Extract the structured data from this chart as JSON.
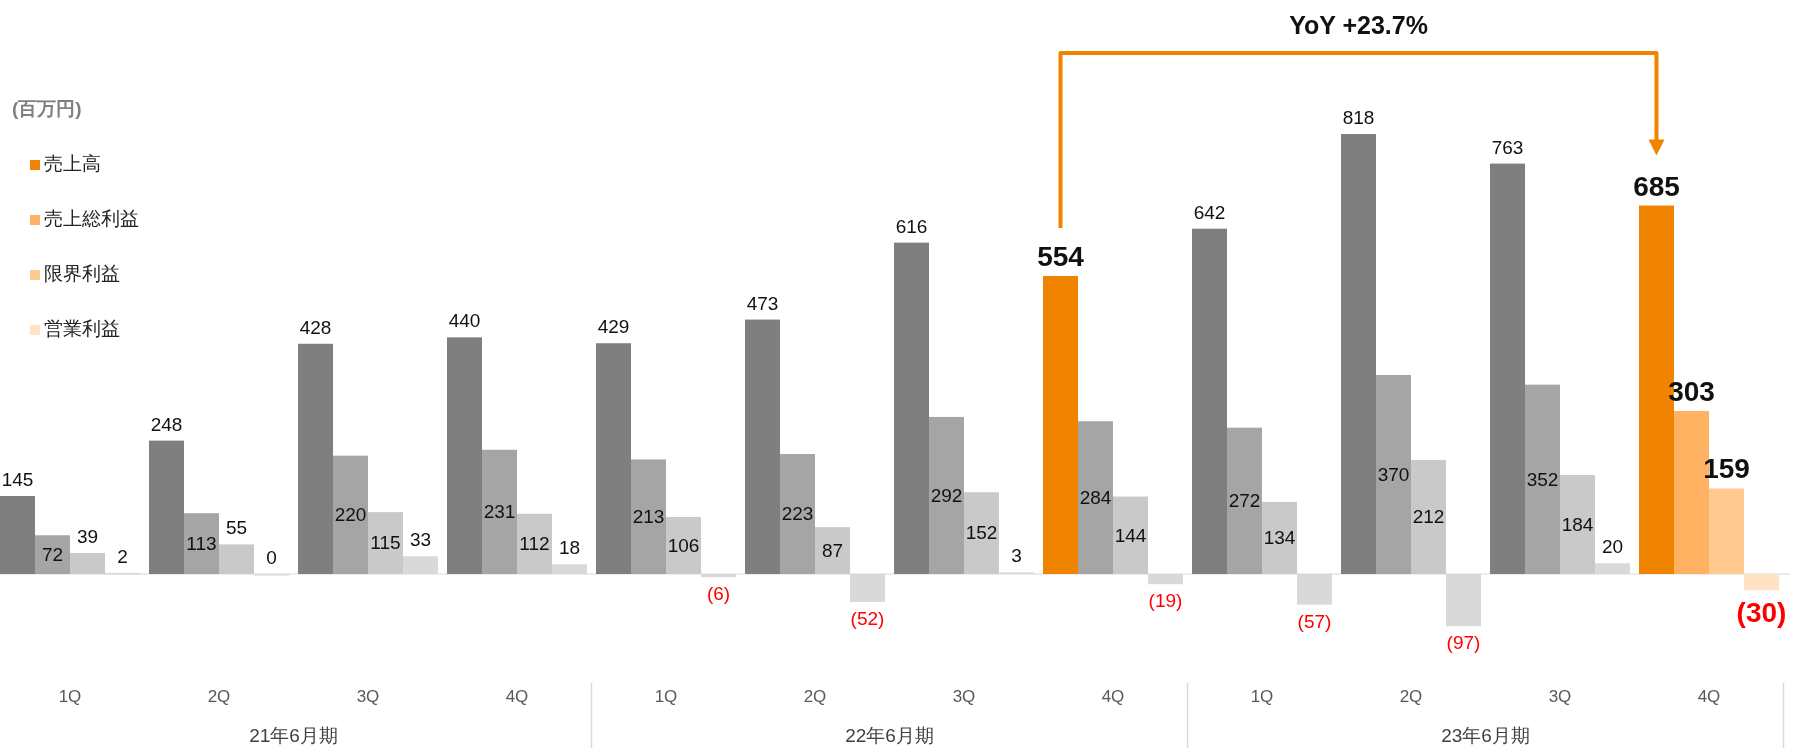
{
  "chart_data": {
    "type": "bar",
    "ylabel": "(百万円)",
    "legend": "top left",
    "tick_labels": "x",
    "categories": [
      "1Q",
      "2Q",
      "3Q",
      "4Q",
      "1Q",
      "2Q",
      "3Q",
      "4Q",
      "1Q",
      "2Q",
      "3Q",
      "4Q"
    ],
    "series": [
      {
        "name": "売上高",
        "color": "#f08300",
        "colors": [
          "#7f7f7f",
          "#7f7f7f",
          "#7f7f7f",
          "#7f7f7f",
          "#7f7f7f",
          "#7f7f7f",
          "#7f7f7f",
          "#f08300",
          "#7f7f7f",
          "#7f7f7f",
          "#7f7f7f",
          "#f08300"
        ],
        "values": [
          145,
          248,
          428,
          440,
          429,
          473,
          616,
          554,
          642,
          818,
          763,
          685
        ],
        "value_labels": [
          "145",
          "248",
          "428",
          "440",
          "429",
          "473",
          "616",
          "554",
          "642",
          "818",
          "763",
          "685"
        ]
      },
      {
        "name": "売上総利益",
        "color": "#ffb362",
        "colors": [
          "#a5a5a5",
          "#a5a5a5",
          "#a5a5a5",
          "#a5a5a5",
          "#a5a5a5",
          "#a5a5a5",
          "#a5a5a5",
          "#a5a5a5",
          "#a5a5a5",
          "#a5a5a5",
          "#a5a5a5",
          "#ffb362"
        ],
        "values": [
          72,
          113,
          220,
          231,
          213,
          223,
          292,
          284,
          272,
          370,
          352,
          303
        ],
        "value_labels": [
          "72",
          "113",
          "220",
          "231",
          "213",
          "223",
          "292",
          "284",
          "272",
          "370",
          "352",
          "303"
        ]
      },
      {
        "name": "限界利益",
        "color": "#ffc98f",
        "colors": [
          "#c9c9c9",
          "#c9c9c9",
          "#c9c9c9",
          "#c9c9c9",
          "#c9c9c9",
          "#c9c9c9",
          "#c9c9c9",
          "#c9c9c9",
          "#c9c9c9",
          "#c9c9c9",
          "#c9c9c9",
          "#ffc98f"
        ],
        "values": [
          39,
          55,
          115,
          112,
          106,
          87,
          152,
          144,
          134,
          212,
          184,
          159
        ],
        "value_labels": [
          "39",
          "55",
          "115",
          "112",
          "106",
          "87",
          "152",
          "144",
          "134",
          "212",
          "184",
          "159"
        ]
      },
      {
        "name": "営業利益",
        "color": "#ffe3c4",
        "colors": [
          "#d9d9d9",
          "#d9d9d9",
          "#d9d9d9",
          "#d9d9d9",
          "#d9d9d9",
          "#d9d9d9",
          "#d9d9d9",
          "#d9d9d9",
          "#d9d9d9",
          "#d9d9d9",
          "#d9d9d9",
          "#ffe3c4"
        ],
        "values": [
          2,
          0,
          33,
          18,
          -6,
          -52,
          3,
          -19,
          -57,
          -97,
          20,
          -30
        ],
        "value_labels": [
          "2",
          "0",
          "33",
          "18",
          "(6)",
          "(52)",
          "3",
          "(19)",
          "(57)",
          "(97)",
          "20",
          "(30)"
        ]
      }
    ],
    "annotations": [
      "YoY +23.7%",
      "21年6月期",
      "22年6月期",
      "23年6月期"
    ]
  }
}
